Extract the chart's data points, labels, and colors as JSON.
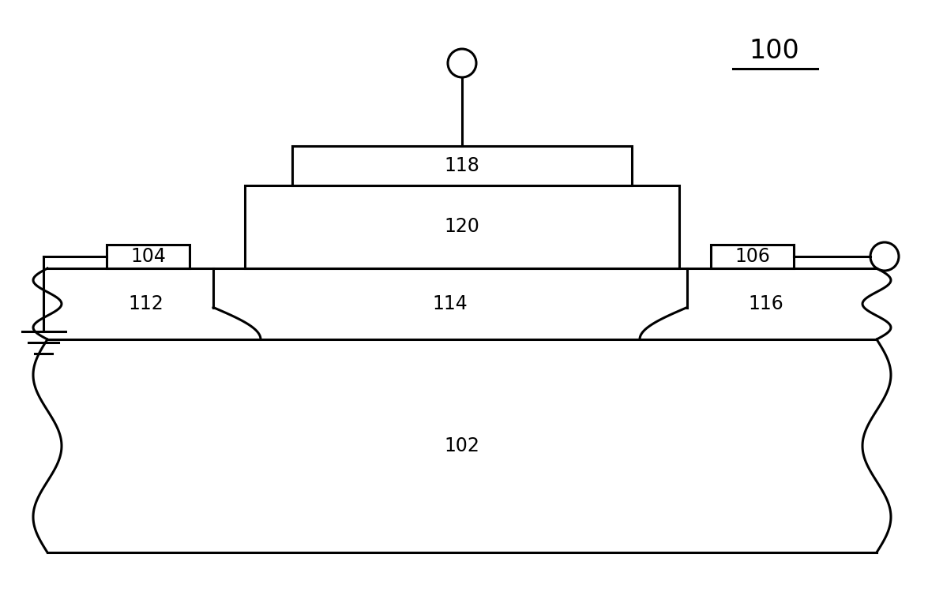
{
  "title": "100",
  "bg_color": "#ffffff",
  "line_color": "#000000",
  "line_width": 2.2,
  "fig_width": 11.75,
  "fig_height": 7.59,
  "labels": {
    "substrate": "102",
    "well_left": "112",
    "well_center": "114",
    "well_right": "116",
    "contact_left": "104",
    "contact_right": "106",
    "gate_body": "120",
    "gate_top": "118"
  },
  "font_size_labels": 17,
  "font_size_title": 24
}
